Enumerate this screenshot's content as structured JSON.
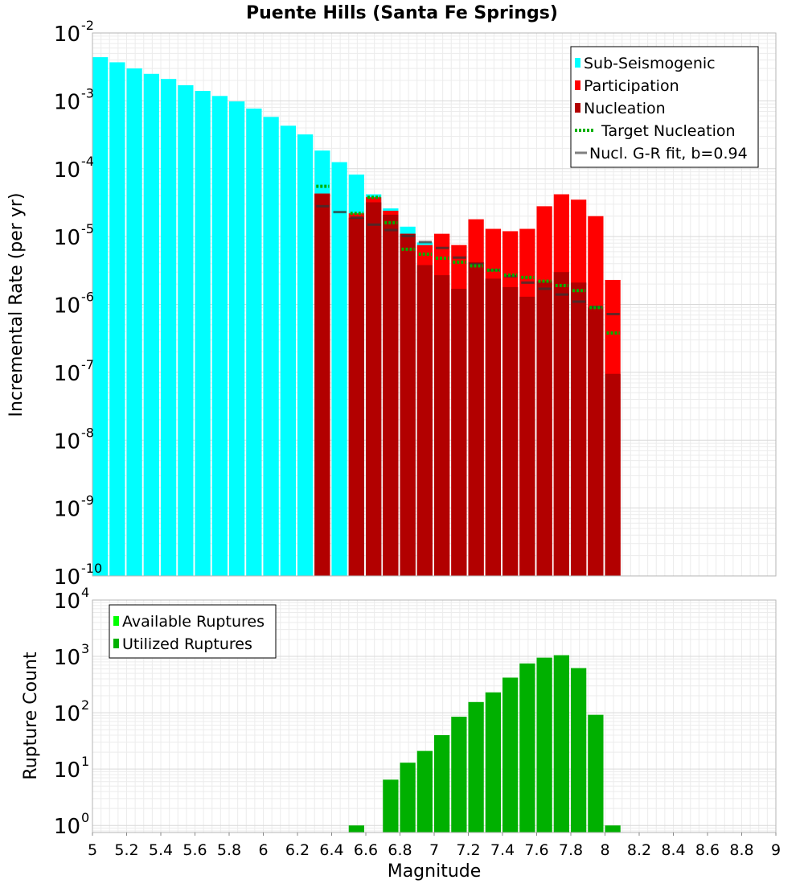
{
  "chart_data": [
    {
      "type": "bar",
      "title": "Puente Hills (Santa Fe Springs)",
      "xlabel": "",
      "ylabel": "Incremental Rate (per yr)",
      "xlim": [
        5,
        9
      ],
      "ylim": [
        1e-10,
        0.01
      ],
      "yscale": "log",
      "grid": true,
      "legend_position": "top-right",
      "colors": {
        "sub_seismogenic": "#00ffff",
        "participation": "#ff0000",
        "nucleation": "#b20000",
        "target_nucleation": "#00b000",
        "gr_fit": "#808080"
      },
      "y_tick_labels": [
        {
          "base": "10",
          "exp": "-10"
        },
        {
          "base": "10",
          "exp": "-9"
        },
        {
          "base": "10",
          "exp": "-8"
        },
        {
          "base": "10",
          "exp": "-7"
        },
        {
          "base": "10",
          "exp": "-6"
        },
        {
          "base": "10",
          "exp": "-5"
        },
        {
          "base": "10",
          "exp": "-4"
        },
        {
          "base": "10",
          "exp": "-3"
        },
        {
          "base": "10",
          "exp": "-2"
        }
      ],
      "legend": [
        {
          "label": "Sub-Seismogenic",
          "kind": "box",
          "color": "#00ffff"
        },
        {
          "label": "Participation",
          "kind": "box",
          "color": "#ff0000"
        },
        {
          "label": "Nucleation",
          "kind": "box",
          "color": "#b20000"
        },
        {
          "label": "Target Nucleation",
          "kind": "dotted",
          "color": "#00b000"
        },
        {
          "label": "Nucl. G-R fit, b=0.94",
          "kind": "line",
          "color": "#808080"
        }
      ],
      "x": [
        5.05,
        5.15,
        5.25,
        5.35,
        5.45,
        5.55,
        5.65,
        5.75,
        5.85,
        5.95,
        6.05,
        6.15,
        6.25,
        6.35,
        6.45,
        6.55,
        6.65,
        6.75,
        6.85,
        6.95,
        7.05,
        7.15,
        7.25,
        7.35,
        7.45,
        7.55,
        7.65,
        7.75,
        7.85,
        7.95,
        8.05
      ],
      "series": [
        {
          "name": "Sub-Seismogenic",
          "color": "#00ffff",
          "values": [
            0.0044,
            0.0037,
            0.003,
            0.0025,
            0.0021,
            0.0017,
            0.0014,
            0.00118,
            0.00098,
            0.00077,
            0.00058,
            0.00043,
            0.00032,
            0.000185,
            0.000125,
            8.2e-05,
            4.2e-05,
            2.6e-05,
            1.4e-05,
            8.2e-06,
            null,
            null,
            null,
            null,
            null,
            null,
            null,
            null,
            null,
            null,
            null
          ]
        },
        {
          "name": "Participation",
          "color": "#ff0000",
          "values": [
            null,
            null,
            null,
            null,
            null,
            null,
            null,
            null,
            null,
            null,
            null,
            null,
            null,
            4.3e-05,
            null,
            2.2e-05,
            3.8e-05,
            2.4e-05,
            1.1e-05,
            7.5e-06,
            1.1e-05,
            7.5e-06,
            1.8e-05,
            1.3e-05,
            1.2e-05,
            1.3e-05,
            2.8e-05,
            4.2e-05,
            3.5e-05,
            2e-05,
            2.3e-06
          ]
        },
        {
          "name": "Nucleation",
          "color": "#b20000",
          "values": [
            null,
            null,
            null,
            null,
            null,
            null,
            null,
            null,
            null,
            null,
            null,
            null,
            null,
            4.3e-05,
            null,
            1.9e-05,
            3.2e-05,
            2.1e-05,
            1.1e-05,
            3.8e-06,
            2.7e-06,
            1.7e-06,
            4.2e-06,
            2.4e-06,
            1.8e-06,
            1.3e-06,
            2.2e-06,
            3e-06,
            2.1e-06,
            9e-07,
            9.5e-08
          ]
        },
        {
          "name": "Target Nucleation",
          "color": "#00b000",
          "values": [
            null,
            null,
            null,
            null,
            null,
            null,
            null,
            null,
            null,
            null,
            null,
            null,
            null,
            5.5e-05,
            null,
            2.2e-05,
            3.8e-05,
            1.6e-05,
            6.5e-06,
            5.5e-06,
            4.8e-06,
            4.2e-06,
            3.7e-06,
            3.2e-06,
            2.7e-06,
            2.5e-06,
            2.2e-06,
            1.9e-06,
            1.6e-06,
            9e-07,
            3.8e-07
          ]
        },
        {
          "name": "Nucl. G-R fit, b=0.94",
          "color": "#808080",
          "values": [
            null,
            null,
            null,
            null,
            null,
            null,
            null,
            null,
            null,
            null,
            null,
            null,
            null,
            2.8e-05,
            2.3e-05,
            1.9e-05,
            1.5e-05,
            1.25e-05,
            1.02e-05,
            8.3e-06,
            6.8e-06,
            4.9e-06,
            3.9e-06,
            3.2e-06,
            2.6e-06,
            2.1e-06,
            1.7e-06,
            1.4e-06,
            1.1e-06,
            9.2e-07,
            7.2e-07
          ]
        }
      ]
    },
    {
      "type": "bar",
      "title": "",
      "xlabel": "Magnitude",
      "ylabel": "Rupture Count",
      "xlim": [
        5,
        9
      ],
      "ylim": [
        0.75,
        10000
      ],
      "yscale": "log",
      "grid": true,
      "legend_position": "top-left",
      "x_tick_labels": [
        "5",
        "5.2",
        "5.4",
        "5.6",
        "5.8",
        "6",
        "6.2",
        "6.4",
        "6.6",
        "6.8",
        "7",
        "7.2",
        "7.4",
        "7.6",
        "7.8",
        "8",
        "8.2",
        "8.4",
        "8.6",
        "8.8",
        "9"
      ],
      "y_tick_labels": [
        {
          "base": "10",
          "exp": "0"
        },
        {
          "base": "10",
          "exp": "1"
        },
        {
          "base": "10",
          "exp": "2"
        },
        {
          "base": "10",
          "exp": "3"
        },
        {
          "base": "10",
          "exp": "4"
        }
      ],
      "legend": [
        {
          "label": "Available Ruptures",
          "kind": "box",
          "color": "#00ff00"
        },
        {
          "label": "Utilized Ruptures",
          "kind": "box",
          "color": "#00b000"
        }
      ],
      "x": [
        6.55,
        6.75,
        6.85,
        6.95,
        7.05,
        7.15,
        7.25,
        7.35,
        7.45,
        7.55,
        7.65,
        7.75,
        7.85,
        7.95,
        8.05
      ],
      "series": [
        {
          "name": "Utilized Ruptures",
          "color": "#00b000",
          "values": [
            1,
            6.5,
            13,
            21,
            40,
            85,
            155,
            230,
            420,
            750,
            950,
            1050,
            620,
            92,
            1
          ]
        }
      ]
    }
  ]
}
